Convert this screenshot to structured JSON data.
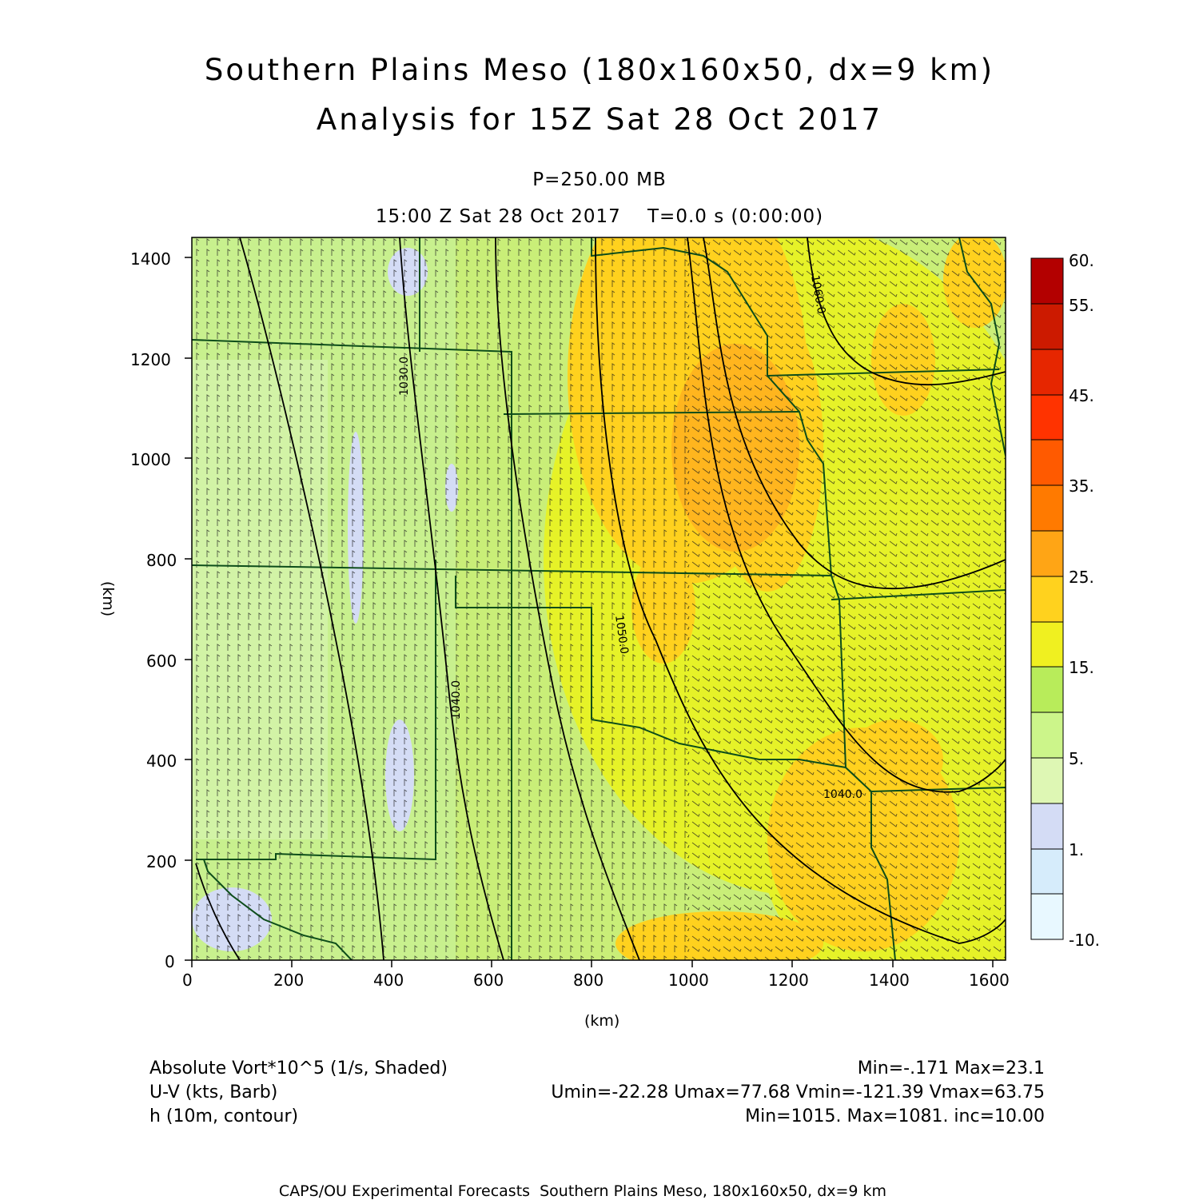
{
  "title_line1": "Southern Plains Meso (180x160x50, dx=9 km)",
  "title_line2": "Analysis for 15Z Sat 28 Oct 2017",
  "level": "P=250.00 MB",
  "time_line": "15:00 Z Sat 28 Oct 2017    T=0.0 s (0:00:00)",
  "axes": {
    "x_label": "(km)",
    "y_label": "(km)",
    "x_ticks": [
      "0",
      "200",
      "400",
      "600",
      "800",
      "1000",
      "1200",
      "1400",
      "1600"
    ],
    "y_ticks": [
      "0",
      "200",
      "400",
      "600",
      "800",
      "1000",
      "1200",
      "1400"
    ],
    "x_range": [
      0,
      1620
    ],
    "y_range": [
      0,
      1440
    ]
  },
  "colorbar": {
    "labels": [
      "60.",
      "55.",
      "45.",
      "35.",
      "25.",
      "15.",
      "5.",
      "1.",
      "-10."
    ],
    "colors": [
      "#b30000",
      "#cc1a00",
      "#e62600",
      "#ff3300",
      "#ff5a00",
      "#ff7a00",
      "#ff9a15",
      "#ffb020",
      "#ffd21e",
      "#f0f020",
      "#e6f528",
      "#b8ec5a",
      "#ccf58a",
      "#def7b4",
      "#d4dcf5",
      "#d6ecfb",
      "#e8f8ff"
    ]
  },
  "contour_labels": [
    "1030.0",
    "1040.0",
    "1050.0",
    "1060.0",
    "1040.0"
  ],
  "legend": {
    "line1_left": "Absolute Vort*10^5 (1/s, Shaded)",
    "line1_right": "Min=-.171 Max=23.1",
    "line2_left": "U-V (kts, Barb)",
    "line2_right": "Umin=-22.28 Umax=77.68 Vmin=-121.39 Vmax=63.75",
    "line3_left": "h (10m, contour)",
    "line3_right": "Min=1015. Max=1081. inc=10.00"
  },
  "footer": "CAPS/OU Experimental Forecasts  Southern Plains Meso, 180x160x50, dx=9 km",
  "colors": {
    "border": "#0d4d1a",
    "contour": "#000000",
    "barb": "#1a1a1a"
  }
}
